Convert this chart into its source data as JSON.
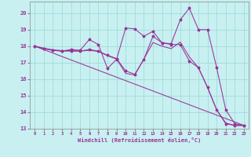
{
  "xlabel": "Windchill (Refroidissement éolien,°C)",
  "background_color": "#c8f0f0",
  "line_color": "#993399",
  "grid_color": "#99d9d9",
  "xlim": [
    -0.5,
    23.5
  ],
  "ylim": [
    13.0,
    20.7
  ],
  "yticks": [
    13,
    14,
    15,
    16,
    17,
    18,
    19,
    20
  ],
  "xticks": [
    0,
    1,
    2,
    3,
    4,
    5,
    6,
    7,
    8,
    9,
    10,
    11,
    12,
    13,
    14,
    15,
    16,
    17,
    18,
    19,
    20,
    21,
    22,
    23
  ],
  "line1_x": [
    0,
    1,
    2,
    3,
    4,
    5,
    6,
    7,
    8,
    9,
    10,
    11,
    12,
    13,
    14,
    15,
    16,
    17,
    18,
    19,
    20,
    21,
    22,
    23
  ],
  "line1_y": [
    18.0,
    17.85,
    17.75,
    17.7,
    17.8,
    17.75,
    18.4,
    18.1,
    16.65,
    17.2,
    19.1,
    19.05,
    18.6,
    18.9,
    18.2,
    18.15,
    19.6,
    20.3,
    19.0,
    19.0,
    16.7,
    14.15,
    13.3,
    13.2
  ],
  "line2_x": [
    0,
    1,
    2,
    3,
    4,
    5,
    6,
    7,
    8,
    9,
    10,
    11,
    12,
    13,
    14,
    15,
    16,
    17,
    18,
    19,
    20,
    21,
    22,
    23
  ],
  "line2_y": [
    18.0,
    17.85,
    17.75,
    17.7,
    17.7,
    17.7,
    17.8,
    17.7,
    17.45,
    17.25,
    16.5,
    16.3,
    17.2,
    18.6,
    18.2,
    18.1,
    18.1,
    17.1,
    16.7,
    15.5,
    14.15,
    13.3,
    13.2,
    13.2
  ],
  "line3_x": [
    0,
    23
  ],
  "line3_y": [
    18.0,
    13.2
  ],
  "line4_x": [
    0,
    1,
    2,
    3,
    4,
    5,
    6,
    7,
    8,
    9,
    10,
    11,
    12,
    13,
    14,
    15,
    16,
    17,
    18,
    19,
    20,
    21,
    22,
    23
  ],
  "line4_y": [
    18.0,
    17.88,
    17.78,
    17.73,
    17.73,
    17.7,
    17.75,
    17.68,
    17.42,
    17.22,
    16.35,
    16.25,
    17.22,
    18.22,
    18.0,
    17.85,
    18.25,
    17.35,
    16.7,
    15.5,
    14.15,
    13.35,
    13.2,
    13.2
  ]
}
